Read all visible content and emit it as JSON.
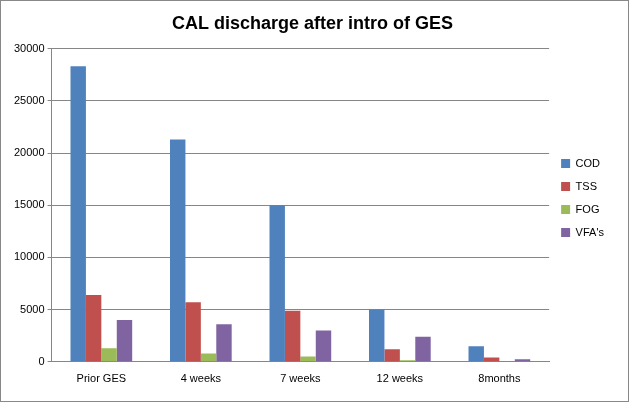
{
  "chart_data": {
    "type": "bar",
    "title": "CAL discharge after intro of GES",
    "categories": [
      "Prior GES",
      "4 weeks",
      "7 weeks",
      "12 weeks",
      "8months"
    ],
    "series": [
      {
        "name": "COD",
        "color": "#4f81bd",
        "values": [
          28300,
          21300,
          15000,
          5000,
          1500
        ]
      },
      {
        "name": "TSS",
        "color": "#c0504d",
        "values": [
          6400,
          5700,
          4900,
          1200,
          400
        ]
      },
      {
        "name": "FOG",
        "color": "#9bbb59",
        "values": [
          1300,
          800,
          500,
          150,
          50
        ]
      },
      {
        "name": "VFA's",
        "color": "#8064a2",
        "values": [
          4000,
          3600,
          3000,
          2400,
          250
        ]
      }
    ],
    "ylim": [
      0,
      30000
    ],
    "yticks": [
      0,
      5000,
      10000,
      15000,
      20000,
      25000,
      30000
    ],
    "grid": true,
    "legend": "right"
  }
}
